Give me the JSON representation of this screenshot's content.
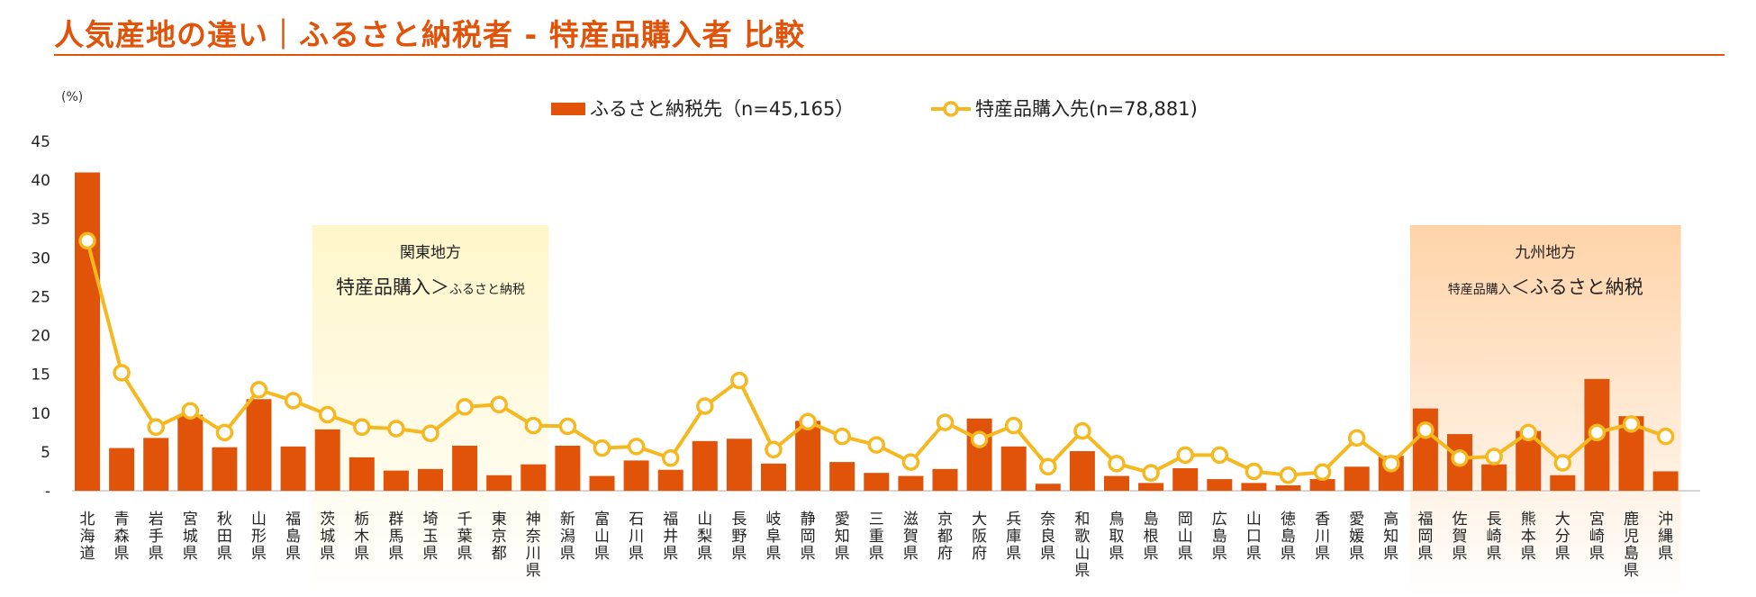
{
  "title": "人気産地の違い｜ふるさと納税者 - 特産品購入者 比較",
  "colors": {
    "accent": "#e2530a",
    "bar": "#e2530a",
    "line": "#f5b81e",
    "kanto_band": "#fff6c9",
    "kyushu_band": "#ffd3a8"
  },
  "regions": [
    {
      "title": "関東地方",
      "start": 7,
      "end": 13,
      "parts": [
        "特産品購入",
        "＞",
        "ふるさと納税"
      ],
      "emphasis": "left"
    },
    {
      "title": "九州地方",
      "start": 39,
      "end": 46,
      "parts": [
        "特産品購入",
        "＜",
        "ふるさと納税"
      ],
      "emphasis": "right"
    }
  ],
  "chart_data": {
    "type": "bar+line",
    "title": "人気産地の違い｜ふるさと納税者 - 特産品購入者 比較",
    "ylabel": "(%)",
    "ylim": [
      0,
      45
    ],
    "yticks": [
      0,
      5,
      10,
      15,
      20,
      25,
      30,
      35,
      40,
      45
    ],
    "ytick_labels": [
      "-",
      "5",
      "10",
      "15",
      "20",
      "25",
      "30",
      "35",
      "40",
      "45"
    ],
    "legend_position": "top-center",
    "categories": [
      "北海道",
      "青森県",
      "岩手県",
      "宮城県",
      "秋田県",
      "山形県",
      "福島県",
      "茨城県",
      "栃木県",
      "群馬県",
      "埼玉県",
      "千葉県",
      "東京都",
      "神奈川県",
      "新潟県",
      "富山県",
      "石川県",
      "福井県",
      "山梨県",
      "長野県",
      "岐阜県",
      "静岡県",
      "愛知県",
      "三重県",
      "滋賀県",
      "京都府",
      "大阪府",
      "兵庫県",
      "奈良県",
      "和歌山県",
      "鳥取県",
      "島根県",
      "岡山県",
      "広島県",
      "山口県",
      "徳島県",
      "香川県",
      "愛媛県",
      "高知県",
      "福岡県",
      "佐賀県",
      "長崎県",
      "熊本県",
      "大分県",
      "宮崎県",
      "鹿児島県",
      "沖縄県"
    ],
    "series": [
      {
        "name": "ふるさと納税先（n=45,165）",
        "type": "bar",
        "values": [
          41.0,
          5.5,
          6.8,
          9.8,
          5.6,
          11.8,
          5.7,
          7.9,
          4.3,
          2.6,
          2.8,
          5.8,
          2.0,
          3.4,
          5.8,
          1.9,
          3.9,
          2.7,
          6.4,
          6.7,
          3.5,
          9.0,
          3.7,
          2.3,
          1.9,
          2.8,
          9.3,
          5.7,
          0.9,
          5.1,
          1.9,
          1.0,
          2.9,
          1.5,
          1.0,
          0.7,
          1.5,
          3.1,
          4.5,
          10.6,
          7.3,
          3.4,
          7.7,
          2.0,
          14.4,
          9.6,
          2.5
        ]
      },
      {
        "name": "特産品購入先(n=78,881)",
        "type": "line",
        "values": [
          32.2,
          15.2,
          8.2,
          10.3,
          7.5,
          13.0,
          11.6,
          9.8,
          8.2,
          8.0,
          7.4,
          10.8,
          11.1,
          8.4,
          8.3,
          5.5,
          5.7,
          4.2,
          10.9,
          14.2,
          5.3,
          8.9,
          7.0,
          5.9,
          3.7,
          8.8,
          6.6,
          8.4,
          3.1,
          7.7,
          3.5,
          2.3,
          4.6,
          4.6,
          2.5,
          2.0,
          2.4,
          6.8,
          3.5,
          7.8,
          4.2,
          4.4,
          7.5,
          3.6,
          7.5,
          8.6,
          7.0
        ]
      }
    ]
  }
}
